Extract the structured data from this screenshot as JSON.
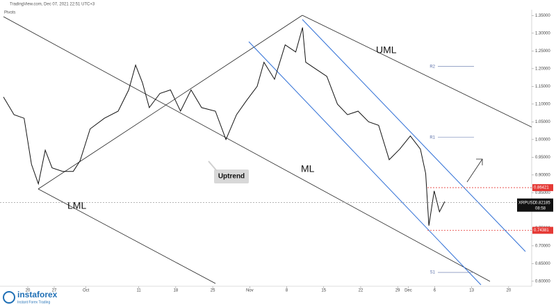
{
  "chart_data": {
    "type": "line",
    "header": "TradingView.com, Dec 07, 2021 22:51 UTC+3",
    "indicator": "Pivots",
    "x": [
      -4.6,
      -2.6,
      -0.7,
      0.7,
      2.0,
      3.3,
      4.6,
      6.6,
      8.6,
      9.9,
      11.8,
      14.5,
      17.1,
      19.1,
      20.4,
      21.7,
      23.0,
      25.0,
      27.0,
      28.9,
      30.9,
      32.9,
      35.5,
      37.5,
      39.5,
      41.4,
      43.4,
      44.7,
      46.7,
      48.7,
      50.7,
      52.0,
      52.6,
      54.6,
      56.6,
      58.6,
      60.5,
      62.5,
      64.5,
      66.4,
      68.4,
      70.4,
      72.4,
      74.3,
      75.3,
      75.9,
      76.9,
      77.9,
      78.9
    ],
    "series": [
      {
        "name": "XRPUSD",
        "color": "#111111",
        "values": [
          1.12,
          1.07,
          1.06,
          0.93,
          0.875,
          0.97,
          0.92,
          0.91,
          0.91,
          0.94,
          1.03,
          1.06,
          1.08,
          1.14,
          1.21,
          1.16,
          1.09,
          1.13,
          1.14,
          1.08,
          1.14,
          1.09,
          1.08,
          1.0,
          1.07,
          1.11,
          1.15,
          1.218,
          1.17,
          1.267,
          1.247,
          1.316,
          1.218,
          1.198,
          1.178,
          1.1,
          1.07,
          1.08,
          1.05,
          1.04,
          0.943,
          0.973,
          1.01,
          0.973,
          0.904,
          0.757,
          0.855,
          0.796,
          0.825
        ]
      }
    ],
    "xlim": [
      -4.6,
      94.7
    ],
    "ylim": [
      0.586,
      1.378
    ],
    "xticks": [
      {
        "value": 0,
        "label": "20"
      },
      {
        "value": 5,
        "label": "27"
      },
      {
        "value": 11,
        "label": "Oct"
      },
      {
        "value": 21,
        "label": "11"
      },
      {
        "value": 28,
        "label": "18"
      },
      {
        "value": 35,
        "label": "25"
      },
      {
        "value": 42,
        "label": "Nov"
      },
      {
        "value": 49,
        "label": "8"
      },
      {
        "value": 56,
        "label": "15"
      },
      {
        "value": 63,
        "label": "22"
      },
      {
        "value": 70,
        "label": "29"
      },
      {
        "value": 72,
        "label": "Dec"
      },
      {
        "value": 77,
        "label": "6"
      },
      {
        "value": 84,
        "label": "13"
      },
      {
        "value": 91,
        "label": "20"
      }
    ],
    "yticks": [
      {
        "value": 1.35,
        "label": "1.35000"
      },
      {
        "value": 1.3,
        "label": "1.30000"
      },
      {
        "value": 1.25,
        "label": "1.25000"
      },
      {
        "value": 1.2,
        "label": "1.20000"
      },
      {
        "value": 1.15,
        "label": "1.15000"
      },
      {
        "value": 1.1,
        "label": "1.10000"
      },
      {
        "value": 1.05,
        "label": "1.05000"
      },
      {
        "value": 1.0,
        "label": "1.00000"
      },
      {
        "value": 0.95,
        "label": "0.95000"
      },
      {
        "value": 0.9,
        "label": "0.90000"
      },
      {
        "value": 0.85,
        "label": "0.85000"
      },
      {
        "value": 0.8,
        "label": "0.80000"
      },
      {
        "value": 0.75,
        "label": "0.75000"
      },
      {
        "value": 0.7,
        "label": "0.70000"
      },
      {
        "value": 0.65,
        "label": "0.65000"
      },
      {
        "value": 0.6,
        "label": "0.60000"
      }
    ],
    "levels": [
      {
        "value": 0.86421,
        "label": "0.86421",
        "color": "#e53935"
      },
      {
        "value": 0.74381,
        "label": "0.74381",
        "color": "#e53935"
      }
    ],
    "last_price": {
      "symbol": "XRPUSD",
      "value": 0.82185,
      "label": "0.82185",
      "countdown": "08:58"
    },
    "pivots": [
      {
        "name": "R2",
        "value": 1.206
      },
      {
        "name": "R1",
        "value": 1.006
      },
      {
        "name": "S1",
        "value": 0.625
      }
    ],
    "annotations": {
      "uml": "UML",
      "ml": "ML",
      "lml": "LML",
      "uptrend": "Uptrend"
    },
    "logo": {
      "name": "instaforex",
      "tagline": "Instant Forex Trading"
    }
  }
}
